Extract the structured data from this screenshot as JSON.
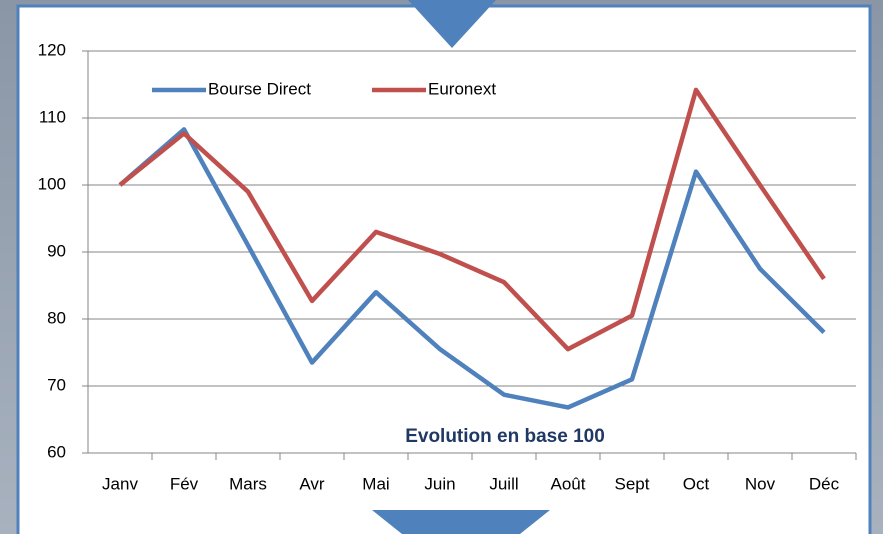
{
  "chart_data": {
    "type": "line",
    "annotation": "Evolution en base 100",
    "categories": [
      "Janv",
      "Fév",
      "Mars",
      "Avr",
      "Mai",
      "Juin",
      "Juill",
      "Août",
      "Sept",
      "Oct",
      "Nov",
      "Déc"
    ],
    "series": [
      {
        "name": "Bourse Direct",
        "color": "#4f81bd",
        "values": [
          100,
          108.3,
          91,
          73.5,
          84,
          75.5,
          68.7,
          66.8,
          71,
          102,
          87.5,
          78
        ]
      },
      {
        "name": "Euronext",
        "color": "#c0504d",
        "values": [
          100,
          107.7,
          99,
          82.7,
          93,
          89.7,
          85.5,
          75.5,
          80.5,
          114.2,
          100,
          86
        ]
      }
    ],
    "ylim": [
      60,
      120
    ],
    "yticks": [
      60,
      70,
      80,
      90,
      100,
      110,
      120
    ],
    "grid": true,
    "legend": "top-left"
  }
}
